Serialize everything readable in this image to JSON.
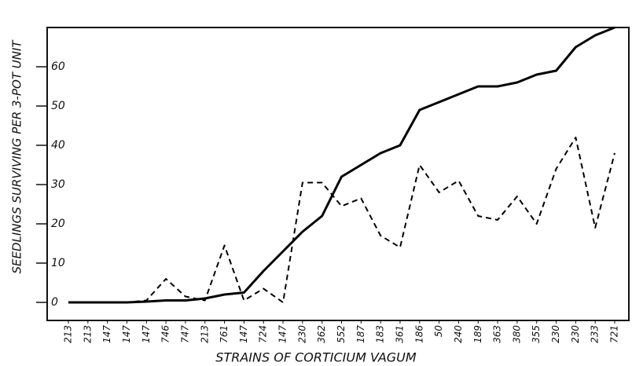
{
  "chart_data": {
    "type": "line",
    "xlabel": "STRAINS OF CORTICIUM VAGUM",
    "ylabel": "SEEDLINGS SURVIVING PER 3-POT UNIT",
    "categories": [
      "213",
      "213",
      "147",
      "147",
      "147",
      "746",
      "747",
      "213",
      "761",
      "147",
      "724",
      "147",
      "230",
      "362",
      "552",
      "187",
      "183",
      "361",
      "186",
      "50",
      "240",
      "189",
      "363",
      "380",
      "355",
      "230",
      "230",
      "233",
      "721"
    ],
    "series": [
      {
        "color": "#000000",
        "dash": false,
        "values": [
          0,
          0,
          0,
          0,
          0.2,
          0.5,
          0.5,
          1,
          2,
          2.5,
          8,
          13,
          18,
          22,
          32,
          35,
          38,
          40,
          49,
          51,
          53,
          55,
          55,
          56,
          58,
          59,
          65,
          68,
          70
        ]
      },
      {
        "color": "#000000",
        "dash": true,
        "values": [
          0,
          0,
          0,
          0,
          0.5,
          6,
          1.5,
          0.5,
          14.5,
          0.5,
          3.5,
          0,
          30.5,
          30.5,
          24.5,
          26.5,
          17,
          14,
          35,
          28,
          31,
          22,
          21,
          27,
          20,
          34,
          42,
          19,
          38
        ]
      }
    ],
    "ylim": [
      -4.6,
      70
    ],
    "yticks": [
      0,
      10,
      20,
      30,
      40,
      50,
      60
    ]
  }
}
